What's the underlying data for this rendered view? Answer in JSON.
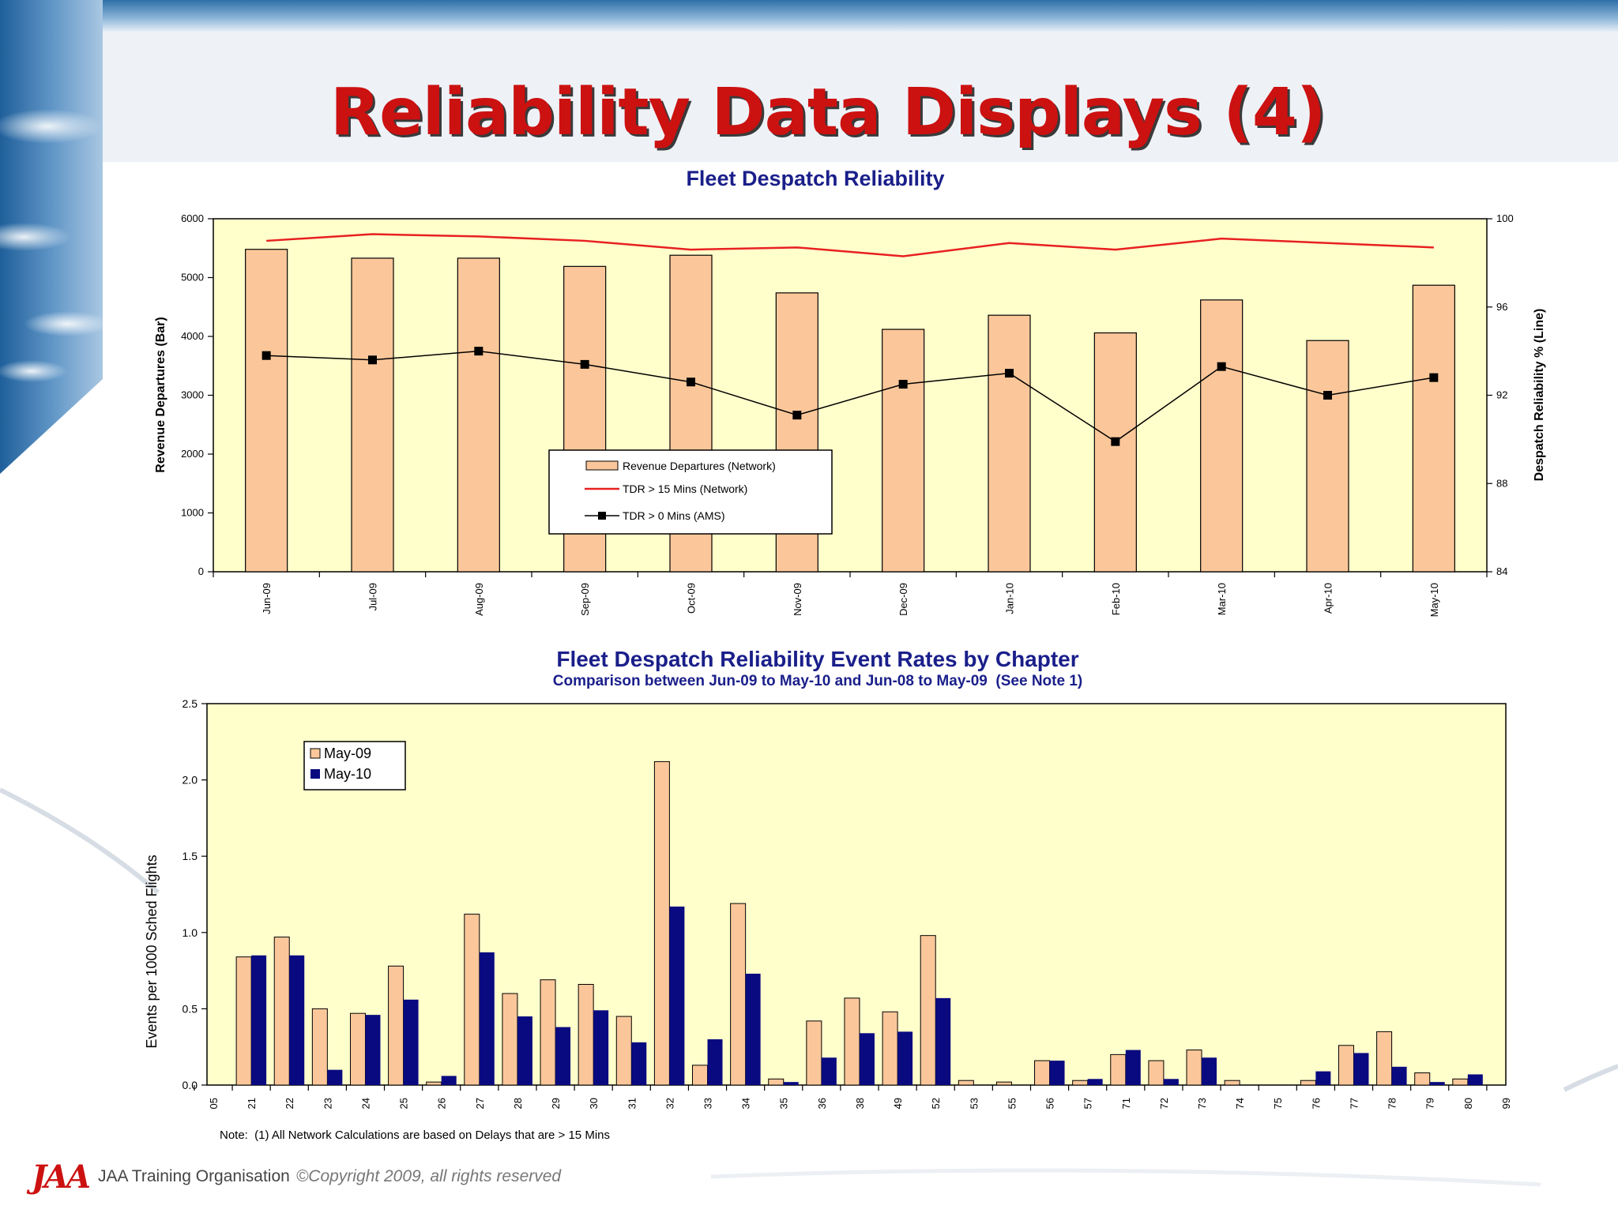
{
  "slide": {
    "title": "Reliability Data Displays (4)",
    "footer": {
      "logo": "JAA",
      "org": "JAA Training Organisation",
      "copyright": "©Copyright 2009, all rights reserved"
    }
  },
  "colors": {
    "title_red": "#cc1111",
    "chart_title_blue": "#1a1f8a",
    "plot_bg": "#ffffcc",
    "bar_peach": "#fbc79a",
    "bar_navy": "#0a0a80",
    "line_red": "#e82020"
  },
  "chart_data": [
    {
      "type": "bar",
      "title": "Fleet Despatch Reliability",
      "ylabel": "Revenue Departures (Bar)",
      "y2label": "Despatch Reliability % (Line)",
      "categories": [
        "Jun-09",
        "Jul-09",
        "Aug-09",
        "Sep-09",
        "Oct-09",
        "Nov-09",
        "Dec-09",
        "Jan-10",
        "Feb-10",
        "Mar-10",
        "Apr-10",
        "May-10"
      ],
      "ylim": [
        0,
        6000
      ],
      "yticks": [
        0,
        1000,
        2000,
        3000,
        4000,
        5000,
        6000
      ],
      "y2lim": [
        84,
        100
      ],
      "y2ticks": [
        84,
        88,
        92,
        96,
        100
      ],
      "series": [
        {
          "name": "Revenue Departures (Network)",
          "kind": "bar",
          "axis": "left",
          "values": [
            5480,
            5330,
            5330,
            5190,
            5380,
            4740,
            4120,
            4360,
            4060,
            4620,
            3930,
            4870
          ]
        },
        {
          "name": "TDR > 15 Mins (Network)",
          "kind": "line",
          "axis": "right",
          "values": [
            99.0,
            99.3,
            99.2,
            99.0,
            98.6,
            98.7,
            98.3,
            98.9,
            98.6,
            99.1,
            98.9,
            98.7
          ]
        },
        {
          "name": "TDR > 0 Mins (AMS)",
          "kind": "line-marker",
          "axis": "right",
          "values": [
            93.8,
            93.6,
            94.0,
            93.4,
            92.6,
            91.1,
            92.5,
            93.0,
            89.9,
            93.3,
            92.0,
            92.8
          ]
        }
      ],
      "legend": "center",
      "grid": false
    },
    {
      "type": "bar",
      "title": "Fleet Despatch Reliability Event Rates by Chapter",
      "subtitle": "Comparison between Jun-09 to May-10 and Jun-08 to May-09  (See Note 1)",
      "ylabel": "Events per 1000 Sched Flights",
      "categories": [
        "05",
        "21",
        "22",
        "23",
        "24",
        "25",
        "26",
        "27",
        "28",
        "29",
        "30",
        "31",
        "32",
        "33",
        "34",
        "35",
        "36",
        "38",
        "49",
        "52",
        "53",
        "55",
        "56",
        "57",
        "71",
        "72",
        "73",
        "74",
        "75",
        "76",
        "77",
        "78",
        "79",
        "80",
        "99"
      ],
      "ylim": [
        0,
        2.5
      ],
      "yticks": [
        "0.0",
        "0.5",
        "1.0",
        "1.5",
        "2.0",
        "2.5"
      ],
      "series": [
        {
          "name": "May-09",
          "values": [
            0,
            0.84,
            0.97,
            0.5,
            0.47,
            0.78,
            0.02,
            1.12,
            0.6,
            0.69,
            0.66,
            0.45,
            2.12,
            0.13,
            1.19,
            0.04,
            0.42,
            0.57,
            0.48,
            0.98,
            0.03,
            0.02,
            0.16,
            0.03,
            0.2,
            0.16,
            0.23,
            0.03,
            0,
            0.03,
            0.26,
            0.35,
            0.08,
            0.04,
            0
          ]
        },
        {
          "name": "May-10",
          "values": [
            0,
            0.85,
            0.85,
            0.1,
            0.46,
            0.56,
            0.06,
            0.87,
            0.45,
            0.38,
            0.49,
            0.28,
            1.17,
            0.3,
            0.73,
            0.02,
            0.18,
            0.34,
            0.35,
            0.57,
            0,
            0,
            0.16,
            0.04,
            0.23,
            0.04,
            0.18,
            0,
            0,
            0.09,
            0.21,
            0.12,
            0.02,
            0.07,
            0
          ]
        }
      ],
      "legend": "top-left",
      "grid": false,
      "note": "Note:  (1) All Network Calculations are based on Delays that are > 15 Mins"
    }
  ]
}
